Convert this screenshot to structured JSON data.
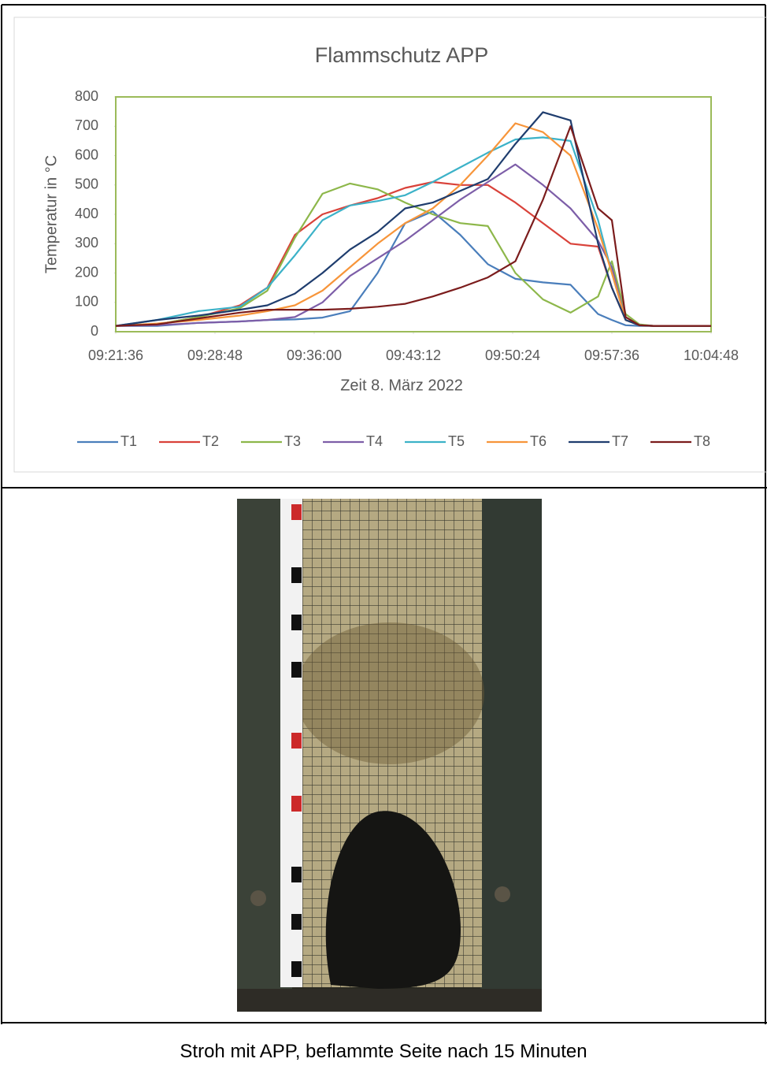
{
  "chart_data": {
    "type": "line",
    "title": "Flammschutz APP",
    "x_label": "Zeit 8. März 2022",
    "y_label": "Temperatur in °C",
    "x": [
      "09:21:36",
      "09:24:36",
      "09:27:36",
      "09:30:36",
      "09:32:36",
      "09:34:36",
      "09:36:36",
      "09:38:36",
      "09:40:36",
      "09:42:36",
      "09:44:36",
      "09:46:36",
      "09:48:36",
      "09:50:36",
      "09:52:36",
      "09:54:36",
      "09:56:36",
      "09:57:36",
      "09:58:36",
      "09:59:36",
      "10:00:36",
      "10:02:36",
      "10:04:48"
    ],
    "series": [
      {
        "name": "T1",
        "color": "#4a7ebb",
        "values": [
          20,
          20,
          30,
          35,
          40,
          42,
          48,
          70,
          200,
          370,
          410,
          330,
          230,
          180,
          168,
          160,
          60,
          40,
          22,
          20,
          20,
          20,
          20
        ]
      },
      {
        "name": "T2",
        "color": "#d9423a",
        "values": [
          20,
          25,
          50,
          90,
          150,
          330,
          400,
          430,
          455,
          490,
          510,
          500,
          500,
          440,
          370,
          300,
          290,
          150,
          40,
          22,
          20,
          20,
          20
        ]
      },
      {
        "name": "T3",
        "color": "#8db74a",
        "values": [
          20,
          25,
          50,
          80,
          140,
          320,
          470,
          505,
          485,
          440,
          400,
          370,
          360,
          200,
          110,
          65,
          120,
          240,
          60,
          25,
          20,
          20,
          20
        ]
      },
      {
        "name": "T4",
        "color": "#7d5ea8",
        "values": [
          20,
          22,
          30,
          35,
          40,
          50,
          100,
          190,
          250,
          310,
          380,
          450,
          510,
          570,
          500,
          420,
          310,
          220,
          40,
          22,
          20,
          20,
          20
        ]
      },
      {
        "name": "T5",
        "color": "#3cb2c8",
        "values": [
          20,
          40,
          70,
          85,
          150,
          260,
          380,
          430,
          445,
          465,
          510,
          560,
          610,
          655,
          662,
          650,
          380,
          200,
          40,
          22,
          20,
          20,
          20
        ]
      },
      {
        "name": "T6",
        "color": "#f7953a",
        "values": [
          20,
          28,
          40,
          55,
          70,
          90,
          140,
          220,
          300,
          370,
          420,
          500,
          600,
          710,
          680,
          600,
          350,
          200,
          40,
          22,
          20,
          20,
          20
        ]
      },
      {
        "name": "T7",
        "color": "#1f3d6e",
        "values": [
          20,
          40,
          55,
          75,
          90,
          130,
          200,
          280,
          340,
          420,
          440,
          480,
          520,
          640,
          748,
          720,
          300,
          150,
          40,
          22,
          20,
          20,
          20
        ]
      },
      {
        "name": "T8",
        "color": "#7b1c1c",
        "values": [
          20,
          25,
          45,
          65,
          75,
          75,
          75,
          78,
          85,
          95,
          120,
          150,
          185,
          240,
          450,
          700,
          420,
          380,
          50,
          22,
          20,
          20,
          20
        ]
      }
    ],
    "xlim": [
      "09:21:36",
      "10:04:48"
    ],
    "xticks": [
      "09:21:36",
      "09:28:48",
      "09:36:00",
      "09:43:12",
      "09:50:24",
      "09:57:36",
      "10:04:48"
    ],
    "ylim": [
      0,
      800
    ],
    "yticks": [
      0,
      100,
      200,
      300,
      400,
      500,
      600,
      700,
      800
    ],
    "grid": false,
    "frame_color": "#9bbb59",
    "legend": "bottom"
  },
  "caption": "Stroh mit APP, beflammte Seite nach 15 Minuten"
}
